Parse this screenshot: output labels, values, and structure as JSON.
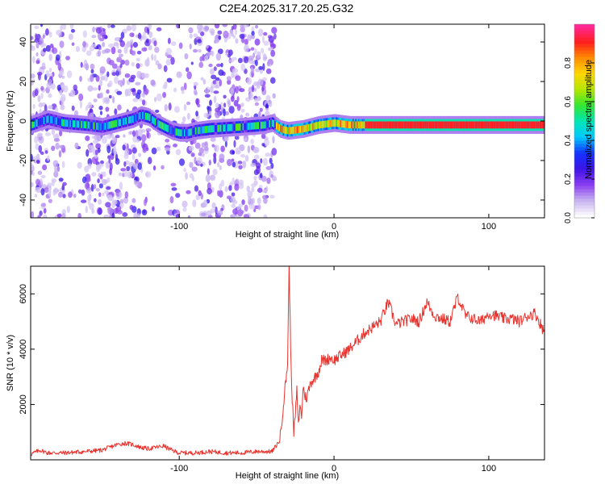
{
  "title": "C2E4.2025.317.20.25.G32",
  "colors": {
    "snr_line": "#e8332e",
    "rainbow": [
      "#ffffff",
      "#c8b4f0",
      "#8a3cf0",
      "#3c14e6",
      "#1432ff",
      "#00c8ff",
      "#00e6b4",
      "#32e632",
      "#b4e600",
      "#ffd700",
      "#ff8c00",
      "#ff1e1e",
      "#ff2896"
    ]
  },
  "chart_data": [
    {
      "type": "heatmap",
      "name": "spectrogram",
      "xlabel": "Height of straight line (km)",
      "ylabel": "Frequency (Hz)",
      "xlim": [
        -196,
        136
      ],
      "ylim": [
        -49,
        49
      ],
      "xticks": [
        -100,
        0,
        100
      ],
      "yticks": [
        -40,
        -20,
        0,
        20,
        40
      ],
      "ridge": {
        "x": [
          -196,
          -185,
          -175,
          -160,
          -150,
          -140,
          -130,
          -125,
          -120,
          -115,
          -110,
          -105,
          -100,
          -95,
          -90,
          -80,
          -60,
          -45,
          -40,
          -35,
          -30,
          -20,
          -10,
          0,
          10,
          20,
          40,
          60,
          80,
          90,
          100,
          120,
          136
        ],
        "y": [
          -2,
          1,
          -1,
          -2,
          -3,
          -1,
          1,
          3,
          2,
          -1,
          -3,
          -5,
          -6,
          -6,
          -5,
          -4,
          -3,
          -2,
          -1,
          -4,
          -5,
          -4,
          -2,
          -1,
          -2,
          -2,
          -2,
          -2,
          -2,
          -2,
          -2,
          -2,
          -2
        ]
      },
      "colorbar": {
        "label": "Normalized spectral amplitude",
        "range": [
          0,
          1
        ],
        "ticks": [
          "0.0",
          "0.2",
          "0.4",
          "0.6",
          "0.8"
        ]
      }
    },
    {
      "type": "line",
      "name": "snr",
      "xlabel": "Height of straight line (km)",
      "ylabel": "SNR (10 * v/v)",
      "xlim": [
        -196,
        136
      ],
      "ylim": [
        0,
        7000
      ],
      "xticks": [
        -100,
        0,
        100
      ],
      "yticks": [
        2000,
        4000,
        6000
      ],
      "x": [
        -196,
        -190,
        -185,
        -175,
        -160,
        -150,
        -140,
        -135,
        -130,
        -125,
        -120,
        -115,
        -110,
        -105,
        -100,
        -90,
        -80,
        -70,
        -60,
        -50,
        -40,
        -35,
        -30,
        -29,
        -28,
        -27,
        -26,
        -25,
        -24,
        -23,
        -22,
        -21,
        -20,
        -18,
        -15,
        -12,
        -10,
        -8,
        -5,
        -2,
        0,
        5,
        10,
        15,
        20,
        25,
        30,
        35,
        40,
        45,
        50,
        55,
        60,
        65,
        70,
        75,
        80,
        85,
        90,
        95,
        100,
        105,
        110,
        115,
        120,
        125,
        130,
        136
      ],
      "y": [
        200,
        350,
        250,
        250,
        300,
        350,
        550,
        600,
        550,
        450,
        400,
        450,
        500,
        350,
        250,
        250,
        300,
        250,
        250,
        300,
        300,
        700,
        3500,
        7000,
        4000,
        2200,
        1000,
        1600,
        2500,
        1200,
        2000,
        1500,
        2600,
        2200,
        2800,
        3000,
        3200,
        3600,
        3600,
        3700,
        3600,
        3800,
        4000,
        4300,
        4600,
        4800,
        5000,
        5700,
        4900,
        5000,
        5100,
        5000,
        5700,
        5200,
        5100,
        5000,
        5900,
        5200,
        5100,
        5000,
        5300,
        5200,
        5100,
        5100,
        5000,
        5200,
        5300,
        4600
      ]
    }
  ]
}
